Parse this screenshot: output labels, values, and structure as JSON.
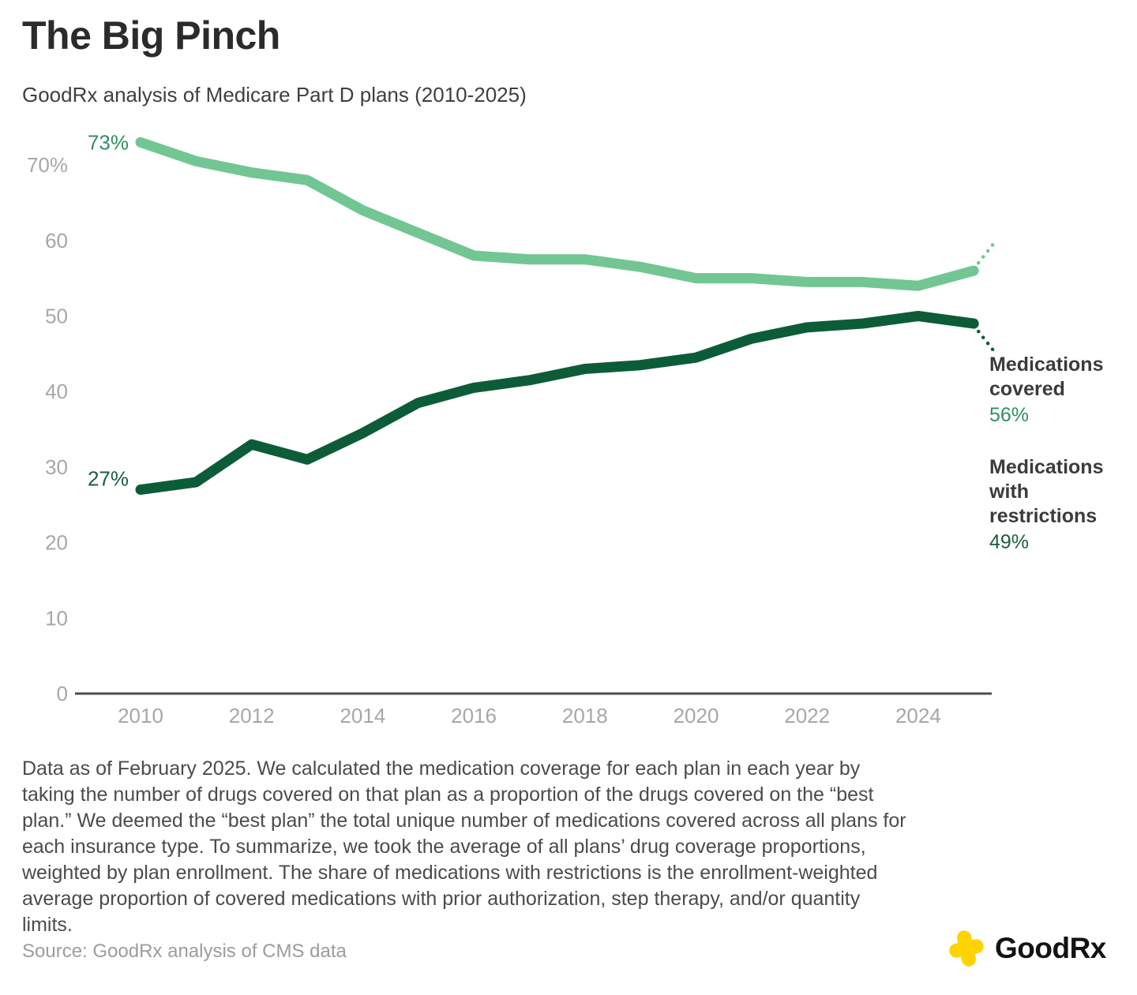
{
  "header": {
    "title": "The Big Pinch",
    "subtitle": "GoodRx analysis of Medicare Part D plans (2010-2025)"
  },
  "chart_data": {
    "type": "line",
    "x": [
      2010,
      2011,
      2012,
      2013,
      2014,
      2015,
      2016,
      2017,
      2018,
      2019,
      2020,
      2021,
      2022,
      2023,
      2024,
      2025
    ],
    "series": [
      {
        "name": "Medications covered",
        "label_lines": [
          "Medications",
          "covered"
        ],
        "values": [
          73,
          70.5,
          69,
          68,
          64,
          61,
          58,
          57.5,
          57.5,
          56.5,
          55,
          55,
          54.5,
          54.5,
          54,
          56
        ],
        "start_label": "73%",
        "end_label": "56%",
        "color": "#72c694",
        "label_color": "#2f8f63"
      },
      {
        "name": "Medications with restrictions",
        "label_lines": [
          "Medications",
          "with",
          "restrictions"
        ],
        "values": [
          27,
          28,
          33,
          31,
          34.5,
          38.5,
          40.5,
          41.5,
          43,
          43.5,
          44.5,
          47,
          48.5,
          49,
          50,
          49
        ],
        "start_label": "27%",
        "end_label": "49%",
        "color": "#0d5c38",
        "label_color": "#1d5c3e"
      }
    ],
    "xticks": [
      "2010",
      "2012",
      "2014",
      "2016",
      "2018",
      "2020",
      "2022",
      "2024"
    ],
    "yticks": [
      {
        "v": 0,
        "label": "0"
      },
      {
        "v": 10,
        "label": "10"
      },
      {
        "v": 20,
        "label": "20"
      },
      {
        "v": 30,
        "label": "30"
      },
      {
        "v": 40,
        "label": "40"
      },
      {
        "v": 50,
        "label": "50"
      },
      {
        "v": 60,
        "label": "60"
      },
      {
        "v": 70,
        "label": "70%"
      }
    ],
    "ylim": [
      0,
      75
    ],
    "grid": false,
    "legend_position": "right-annotations",
    "axis_line_color": "#4d4d4d",
    "tick_text_color": "#a7a7a7"
  },
  "footnote": "Data as of February 2025. We calculated the medication coverage for each plan in each year by taking the number of drugs covered on that plan as a proportion of the drugs covered on the “best plan.” We deemed the “best plan” the total unique number of medications covered across all plans for each insurance type. To summarize, we took the average of all plans’ drug coverage proportions, weighted by plan enrollment. The share of medications with restrictions is the enrollment-weighted average proportion of covered medications with prior authorization, step therapy, and/or quantity limits.",
  "source": "Source: GoodRx analysis of CMS data",
  "logo": {
    "text": "GoodRx",
    "cross_color": "#fdd301"
  }
}
